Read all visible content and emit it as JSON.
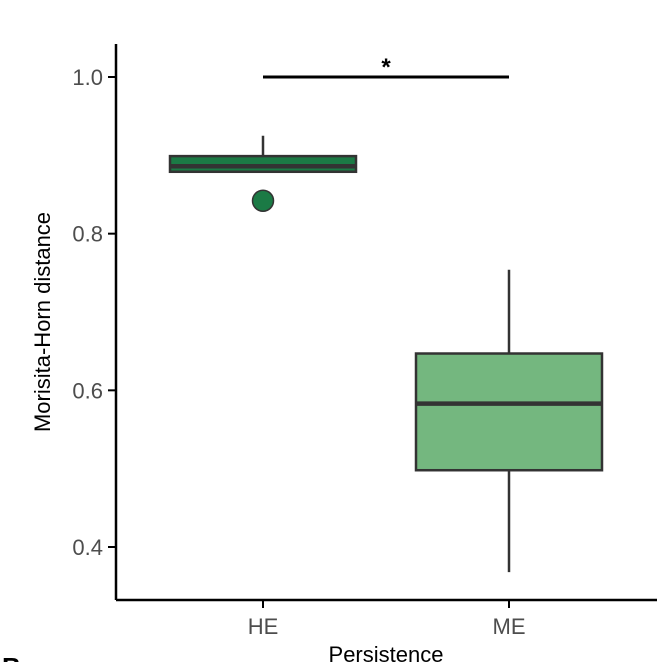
{
  "chart_data": {
    "type": "box",
    "title": "",
    "xlabel": "Persistence",
    "ylabel": "Morisita-Horn distance",
    "categories": [
      "HE",
      "ME"
    ],
    "ylim": [
      0.36,
      1.04
    ],
    "yticks": [
      0.4,
      0.6,
      0.8,
      1.0
    ],
    "ytick_labels": [
      "0.4",
      "0.6",
      "0.8",
      "1.0"
    ],
    "grid": false,
    "legend": "none",
    "boxes": [
      {
        "category": "HE",
        "whisker_low": 0.879,
        "q1": 0.879,
        "median": 0.886,
        "q3": 0.899,
        "whisker_high": 0.925,
        "outliers": [
          0.842
        ],
        "color": "#1b7a45"
      },
      {
        "category": "ME",
        "whisker_low": 0.368,
        "q1": 0.498,
        "median": 0.583,
        "q3": 0.647,
        "whisker_high": 0.754,
        "outliers": [],
        "color": "#74b77f"
      }
    ],
    "significance": {
      "between": [
        "HE",
        "ME"
      ],
      "y": 1.0,
      "label": "*"
    }
  },
  "panel_letter": "B"
}
